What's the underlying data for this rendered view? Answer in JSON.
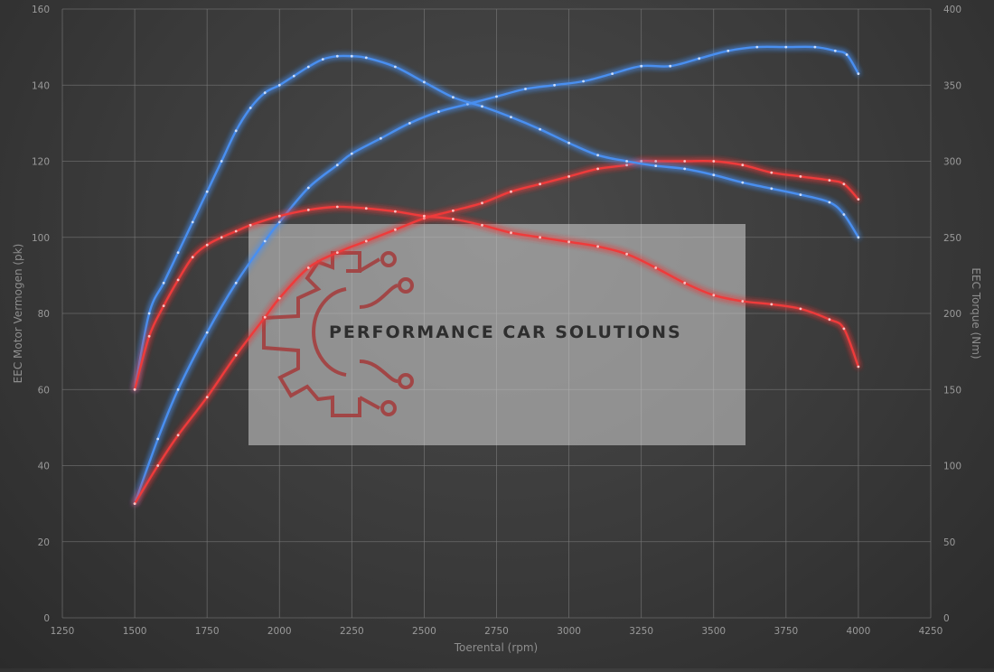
{
  "chart_data": {
    "type": "line",
    "x_axis": {
      "label": "Toerental (rpm)",
      "range": [
        1250,
        4250
      ],
      "ticks": [
        "1250",
        "1500",
        "1750",
        "2000",
        "2250",
        "2500",
        "2750",
        "3000",
        "3250",
        "3500",
        "3750",
        "4000",
        "4250"
      ]
    },
    "y_axis_left": {
      "label": "EEC Motor Vermogen (pk)",
      "range": [
        0,
        160
      ],
      "ticks": [
        "0",
        "20",
        "40",
        "60",
        "80",
        "100",
        "120",
        "140",
        "160"
      ]
    },
    "y_axis_right": {
      "label": "EEC Torque (Nm)",
      "range": [
        0,
        400
      ],
      "ticks": [
        "0",
        "50",
        "100",
        "150",
        "200",
        "250",
        "300",
        "350",
        "400"
      ]
    },
    "grid": true,
    "legend": "none",
    "watermark": "PERFORMANCE CAR SOLUTIONS",
    "series": [
      {
        "key": "power_tuned",
        "axis": "left",
        "color": "#4a8ff0",
        "x": [
          1500,
          1580,
          1650,
          1750,
          1850,
          1950,
          2000,
          2100,
          2200,
          2250,
          2350,
          2450,
          2550,
          2650,
          2750,
          2850,
          2950,
          3050,
          3150,
          3250,
          3350,
          3450,
          3550,
          3650,
          3750,
          3850,
          3920,
          3960,
          4000
        ],
        "y": [
          30,
          47,
          60,
          75,
          88,
          99,
          104,
          113,
          119,
          122,
          126,
          130,
          133,
          135,
          137,
          139,
          140,
          141,
          143,
          145,
          145,
          147,
          149,
          150,
          150,
          150,
          149,
          148,
          143
        ]
      },
      {
        "key": "power_stock",
        "axis": "left",
        "color": "#ee3a3a",
        "x": [
          1500,
          1580,
          1650,
          1750,
          1850,
          1950,
          2000,
          2100,
          2200,
          2300,
          2400,
          2500,
          2600,
          2700,
          2800,
          2900,
          3000,
          3100,
          3200,
          3250,
          3300,
          3400,
          3500,
          3600,
          3700,
          3800,
          3900,
          3950,
          4000
        ],
        "y": [
          30,
          40,
          48,
          58,
          69,
          79,
          84,
          92,
          96,
          99,
          102,
          105,
          107,
          109,
          112,
          114,
          116,
          118,
          119,
          120,
          120,
          120,
          120,
          119,
          117,
          116,
          115,
          114,
          110
        ]
      },
      {
        "key": "torque_tuned",
        "axis": "right",
        "color": "#4a8ff0",
        "x": [
          1500,
          1550,
          1600,
          1650,
          1700,
          1750,
          1800,
          1850,
          1900,
          1950,
          2000,
          2050,
          2100,
          2150,
          2200,
          2250,
          2300,
          2400,
          2500,
          2600,
          2700,
          2800,
          2900,
          3000,
          3100,
          3200,
          3300,
          3400,
          3500,
          3600,
          3700,
          3800,
          3900,
          3950,
          4000
        ],
        "y": [
          150,
          200,
          220,
          240,
          260,
          280,
          300,
          320,
          335,
          345,
          350,
          356,
          362,
          367,
          369,
          369,
          368,
          362,
          352,
          342,
          336,
          329,
          321,
          312,
          304,
          300,
          297,
          295,
          291,
          286,
          282,
          278,
          273,
          265,
          250
        ]
      },
      {
        "key": "torque_stock",
        "axis": "right",
        "color": "#ee3a3a",
        "x": [
          1500,
          1550,
          1600,
          1650,
          1700,
          1750,
          1800,
          1850,
          1900,
          2000,
          2100,
          2200,
          2300,
          2400,
          2500,
          2600,
          2700,
          2800,
          2900,
          3000,
          3100,
          3200,
          3300,
          3400,
          3500,
          3600,
          3700,
          3800,
          3900,
          3950,
          4000
        ],
        "y": [
          150,
          185,
          205,
          222,
          237,
          245,
          250,
          254,
          258,
          264,
          268,
          270,
          269,
          267,
          264,
          262,
          258,
          253,
          250,
          247,
          244,
          239,
          230,
          220,
          212,
          208,
          206,
          203,
          196,
          190,
          165
        ]
      }
    ]
  }
}
